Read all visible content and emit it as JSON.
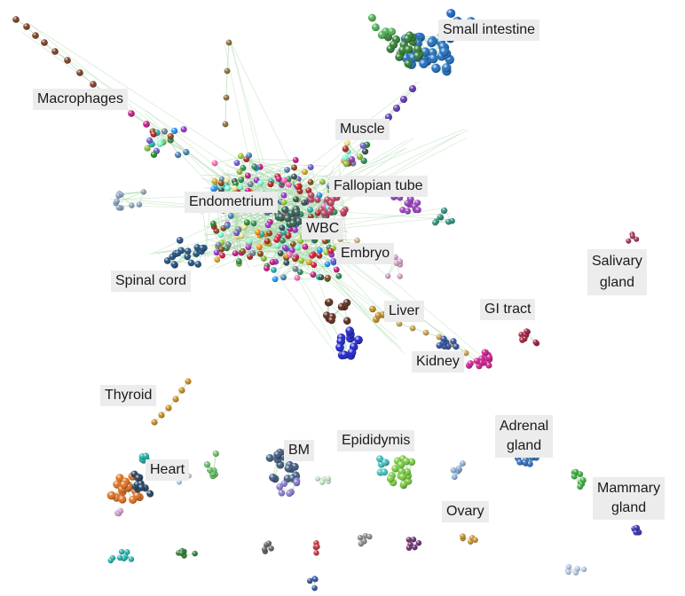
{
  "palette": {
    "edge": "#a9d6a8",
    "label_bg": "#ececec",
    "mixed": [
      "#2e8b57",
      "#8fbc3f",
      "#c71585",
      "#6a5acd",
      "#ff8c00",
      "#1e90ff",
      "#228b22",
      "#b22222",
      "#9acd32",
      "#4682b4",
      "#daa520",
      "#ff69b4",
      "#20b2aa",
      "#8b4513",
      "#9932cc",
      "#2f4f4f",
      "#f0e68c",
      "#7fffd4",
      "#dc143c",
      "#708090"
    ]
  },
  "labels": [
    {
      "id": "small-intestine",
      "text": "Small intestine",
      "color": "#1f6fbf"
    },
    {
      "id": "macrophages",
      "text": "Macrophages",
      "color": "#7a3b22"
    },
    {
      "id": "muscle",
      "text": "Muscle",
      "color": "#6a3fa0"
    },
    {
      "id": "fallopian-tube",
      "text": "Fallopian tube",
      "color": "#9b3fbf"
    },
    {
      "id": "endometrium",
      "text": "Endometrium",
      "color": "#2f6f5f"
    },
    {
      "id": "wbc",
      "text": "WBC",
      "color": "#c04040"
    },
    {
      "id": "embryo",
      "text": "Embryo",
      "color": "#c0c040"
    },
    {
      "id": "salivary-gland",
      "text": "Salivary\ngland",
      "color": "#a03050"
    },
    {
      "id": "spinal-cord",
      "text": "Spinal cord",
      "color": "#1f4f7f"
    },
    {
      "id": "gi-tract",
      "text": "GI tract",
      "color": "#a02040"
    },
    {
      "id": "liver",
      "text": "Liver",
      "color": "#c08a20"
    },
    {
      "id": "kidney",
      "text": "Kidney",
      "color": "#d02090"
    },
    {
      "id": "thyroid",
      "text": "Thyroid",
      "color": "#c88a20"
    },
    {
      "id": "heart",
      "text": "Heart",
      "color": "#e07020"
    },
    {
      "id": "bm",
      "text": "BM",
      "color": "#2f8fa0"
    },
    {
      "id": "epididymis",
      "text": "Epididymis",
      "color": "#40c0c0"
    },
    {
      "id": "adrenal-gland",
      "text": "Adrenal\ngland",
      "color": "#3070c0"
    },
    {
      "id": "ovary",
      "text": "Ovary",
      "color": "#c89030"
    },
    {
      "id": "mammary-gland",
      "text": "Mammary\ngland",
      "color": "#3030b0"
    }
  ]
}
